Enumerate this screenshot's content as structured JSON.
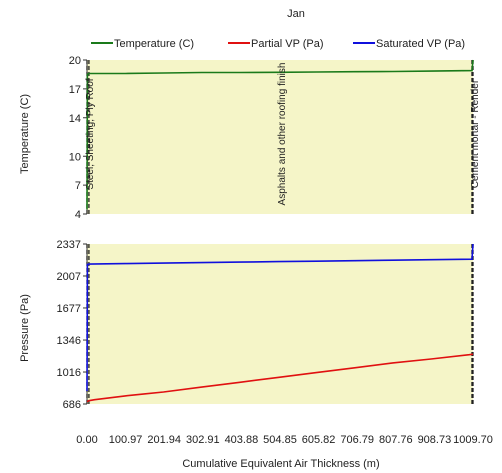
{
  "chart_data": {
    "title": "Jan",
    "xlabel": "Cumulative Equivalent Air Thickness (m)",
    "x_ticks": [
      "0.00",
      "100.97",
      "201.94",
      "302.91",
      "403.88",
      "504.85",
      "605.82",
      "706.79",
      "807.76",
      "908.73",
      "1009.70"
    ],
    "xlim": [
      0,
      1009.7
    ],
    "legend": [
      {
        "name": "Temperature (C)",
        "color": "#1a7a1a"
      },
      {
        "name": "Partial VP (Pa)",
        "color": "#e01010"
      },
      {
        "name": "Saturated VP (Pa)",
        "color": "#1010dd"
      }
    ],
    "background_color": "#f5f5c8",
    "layer_labels": [
      "Steel, Sheeting, Ply Roof",
      "Asphalts and other roofing finish",
      "Cement mortar - Render"
    ],
    "layer_boundaries_x": [
      0,
      5,
      1007,
      1009.7
    ],
    "panels": [
      {
        "type": "line",
        "ylabel": "Temperature (C)",
        "y_ticks": [
          "4",
          "7",
          "10",
          "14",
          "17",
          "20"
        ],
        "ylim": [
          4,
          20
        ],
        "series": [
          {
            "name": "Temperature (C)",
            "color": "#1a7a1a",
            "x": [
              0,
              1,
              5,
              100,
              200,
              300,
              400,
              500,
              600,
              700,
              800,
              900,
              1007,
              1009.7
            ],
            "y": [
              4.5,
              18.5,
              18.6,
              18.6,
              18.65,
              18.7,
              18.7,
              18.72,
              18.75,
              18.78,
              18.8,
              18.85,
              18.9,
              20
            ]
          }
        ]
      },
      {
        "type": "line",
        "ylabel": "Pressure (Pa)",
        "y_ticks": [
          "686",
          "1016",
          "1346",
          "1677",
          "2007",
          "2337"
        ],
        "ylim": [
          686,
          2337
        ],
        "series": [
          {
            "name": "Saturated VP (Pa)",
            "color": "#1010dd",
            "x": [
              0,
              1,
              5,
              100,
              200,
              300,
              400,
              500,
              600,
              700,
              800,
              900,
              1007,
              1009.7
            ],
            "y": [
              820,
              2125,
              2130,
              2135,
              2140,
              2145,
              2150,
              2155,
              2160,
              2165,
              2170,
              2175,
              2180,
              2370
            ]
          },
          {
            "name": "Partial VP (Pa)",
            "color": "#e01010",
            "x": [
              0,
              5,
              20,
              60,
              100,
              150,
              200,
              300,
              400,
              500,
              600,
              700,
              800,
              900,
              1000,
              1009.7
            ],
            "y": [
              710,
              720,
              730,
              750,
              770,
              790,
              810,
              860,
              910,
              960,
              1010,
              1060,
              1110,
              1150,
              1195,
              1200
            ]
          }
        ]
      }
    ]
  }
}
